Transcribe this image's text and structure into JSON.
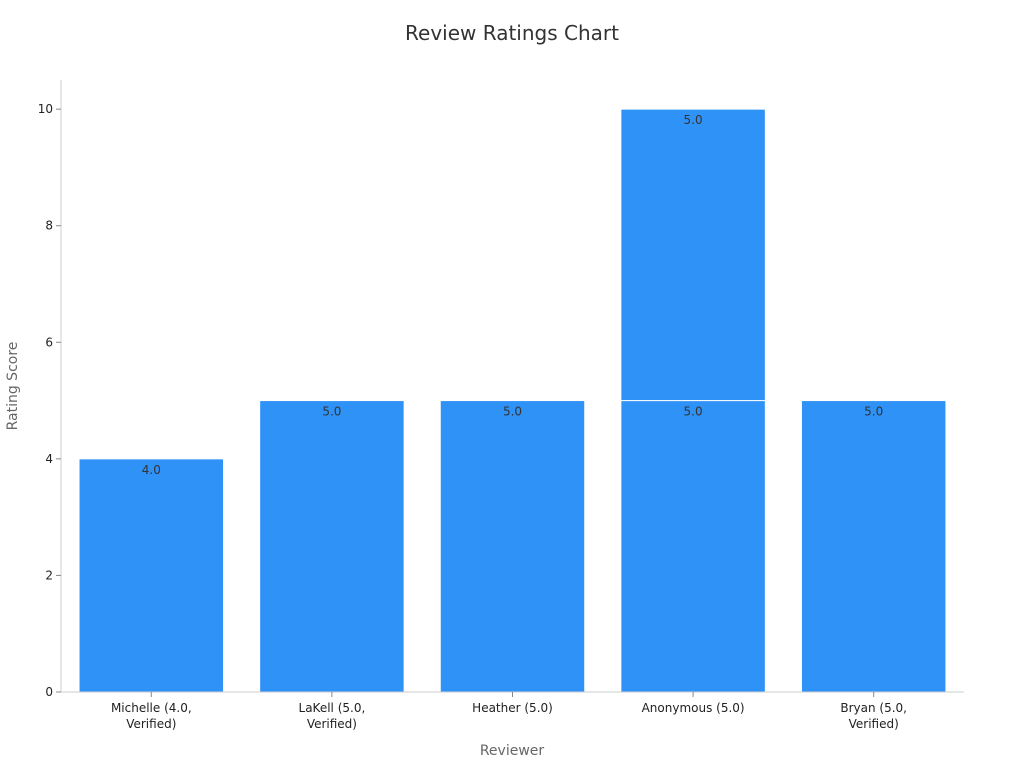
{
  "chart_data": {
    "type": "bar",
    "title": "Review Ratings Chart",
    "xlabel": "Reviewer",
    "ylabel": "Rating Score",
    "categories": [
      [
        "Michelle (4.0,",
        "Verified)"
      ],
      [
        "LaKell (5.0,",
        "Verified)"
      ],
      [
        "Heather (5.0)"
      ],
      [
        "Anonymous (5.0)"
      ],
      [
        "Bryan (5.0,",
        "Verified)"
      ]
    ],
    "stacked": true,
    "segments": [
      {
        "category_index": 0,
        "base": 0,
        "value": 4,
        "label": "4.0"
      },
      {
        "category_index": 1,
        "base": 0,
        "value": 5,
        "label": "5.0"
      },
      {
        "category_index": 2,
        "base": 0,
        "value": 5,
        "label": "5.0"
      },
      {
        "category_index": 3,
        "base": 0,
        "value": 5,
        "label": "5.0"
      },
      {
        "category_index": 3,
        "base": 5,
        "value": 5,
        "label": "5.0"
      },
      {
        "category_index": 4,
        "base": 0,
        "value": 5,
        "label": "5.0"
      }
    ],
    "ylim": [
      0,
      10.5
    ],
    "yticks": [
      0,
      2,
      4,
      6,
      8,
      10
    ],
    "grid": false,
    "bar_color": "#2f92f7"
  }
}
